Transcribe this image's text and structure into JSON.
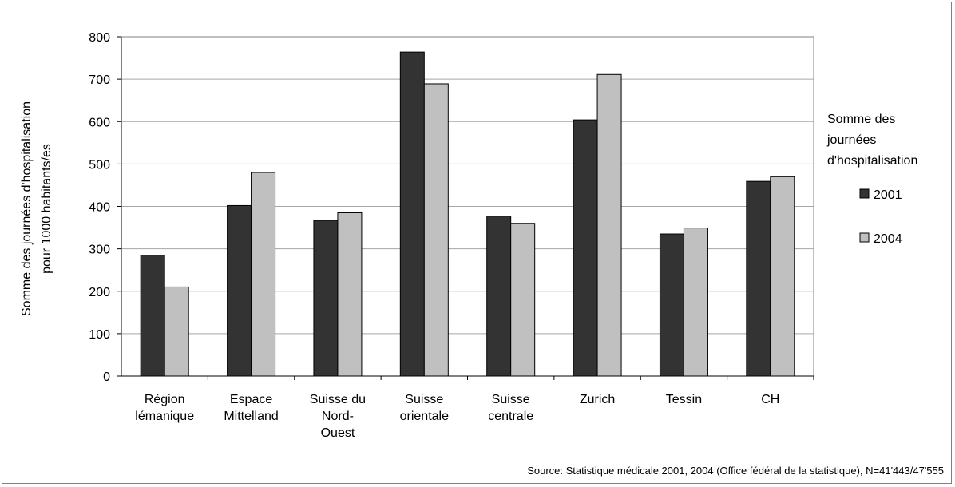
{
  "chart_data": {
    "type": "bar",
    "title": "",
    "ylabel_lines": [
      "Somme des journées d'hospitalisation",
      "pour 1000 habitants/es"
    ],
    "ylim": [
      0,
      800
    ],
    "yticks": [
      "0",
      "100",
      "200",
      "300",
      "400",
      "500",
      "600",
      "700",
      "800"
    ],
    "grid": true,
    "categories": [
      [
        "Région",
        "lémanique"
      ],
      [
        "Espace",
        "Mittelland"
      ],
      [
        "Suisse du",
        "Nord-",
        "Ouest"
      ],
      [
        "Suisse",
        "orientale"
      ],
      [
        "Suisse",
        "centrale"
      ],
      [
        "Zurich"
      ],
      [
        "Tessin"
      ],
      [
        "CH"
      ]
    ],
    "legend_title_lines": [
      "Somme des",
      "journées",
      "d'hospitalisation"
    ],
    "legend_position": "right",
    "series": [
      {
        "name": "2001",
        "color": "#333333",
        "values": [
          285,
          402,
          367,
          764,
          377,
          604,
          335,
          459
        ]
      },
      {
        "name": "2004",
        "color": "#c0c0c0",
        "values": [
          210,
          480,
          385,
          689,
          360,
          711,
          349,
          470
        ]
      }
    ],
    "source": "Source: Statistique médicale 2001, 2004 (Office fédéral de la statistique), N=41'443/47'555"
  }
}
